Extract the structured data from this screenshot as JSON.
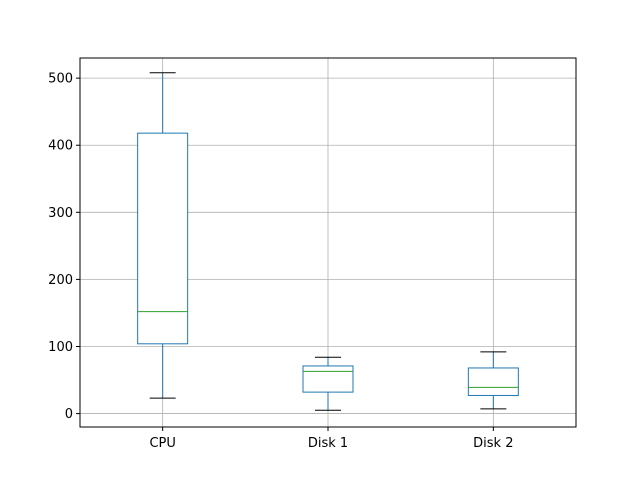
{
  "chart_data": {
    "type": "box",
    "categories": [
      "CPU",
      "Disk 1",
      "Disk 2"
    ],
    "boxes": [
      {
        "label": "CPU",
        "whisker_low": 23,
        "q1": 104,
        "median": 152,
        "q3": 418,
        "whisker_high": 508
      },
      {
        "label": "Disk 1",
        "whisker_low": 5,
        "q1": 32,
        "median": 63,
        "q3": 71,
        "whisker_high": 84
      },
      {
        "label": "Disk 2",
        "whisker_low": 7,
        "q1": 27,
        "median": 39,
        "q3": 68,
        "whisker_high": 92
      }
    ],
    "yticks": [
      0,
      100,
      200,
      300,
      400,
      500
    ],
    "ylim": [
      -20,
      530
    ],
    "grid": true,
    "colors": {
      "box": "#1f77b4",
      "median": "#2ca02c",
      "cap": "#000000",
      "grid": "#b0b0b0",
      "axes": "#000000"
    }
  }
}
